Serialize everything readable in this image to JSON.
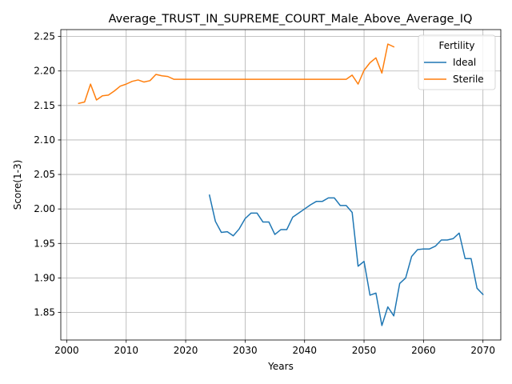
{
  "chart_data": {
    "type": "line",
    "title": "Average_TRUST_IN_SUPREME_COURT_Male_Above_Average_IQ",
    "xlabel": "Years",
    "ylabel": "Score(1-3)",
    "xlim": [
      1999,
      2073
    ],
    "ylim": [
      1.81,
      2.26
    ],
    "xticks": [
      2000,
      2010,
      2020,
      2030,
      2040,
      2050,
      2060,
      2070
    ],
    "yticks": [
      1.85,
      1.9,
      1.95,
      2.0,
      2.05,
      2.1,
      2.15,
      2.2,
      2.25
    ],
    "ytick_labels": [
      "1.85",
      "1.90",
      "1.95",
      "2.00",
      "2.05",
      "2.10",
      "2.15",
      "2.20",
      "2.25"
    ],
    "grid": true,
    "legend": {
      "title": "Fertility",
      "position": "top-right"
    },
    "series": [
      {
        "name": "Ideal",
        "color": "#1f77b4",
        "x": [
          2024,
          2025,
          2026,
          2027,
          2028,
          2029,
          2030,
          2031,
          2032,
          2033,
          2034,
          2035,
          2036,
          2037,
          2038,
          2039,
          2040,
          2041,
          2042,
          2043,
          2044,
          2045,
          2046,
          2047,
          2048,
          2049,
          2050,
          2051,
          2052,
          2053,
          2054,
          2055,
          2056,
          2057,
          2058,
          2059,
          2060,
          2061,
          2062,
          2063,
          2064,
          2065,
          2066,
          2067,
          2068,
          2069,
          2070
        ],
        "values": [
          2.02,
          1.982,
          1.966,
          1.967,
          1.961,
          1.971,
          1.986,
          1.994,
          1.994,
          1.981,
          1.981,
          1.963,
          1.97,
          1.97,
          1.988,
          1.994,
          2.0,
          2.006,
          2.011,
          2.011,
          2.016,
          2.016,
          2.005,
          2.005,
          1.995,
          1.917,
          1.924,
          1.875,
          1.878,
          1.831,
          1.858,
          1.845,
          1.892,
          1.9,
          1.931,
          1.941,
          1.942,
          1.942,
          1.946,
          1.955,
          1.955,
          1.957,
          1.965,
          1.928,
          1.928,
          1.885,
          1.876
        ]
      },
      {
        "name": "Sterile",
        "color": "#ff7f0e",
        "x": [
          2002,
          2003,
          2004,
          2005,
          2006,
          2007,
          2008,
          2009,
          2010,
          2011,
          2012,
          2013,
          2014,
          2015,
          2016,
          2017,
          2018,
          2019,
          2020,
          2021,
          2022,
          2023,
          2024,
          2025,
          2026,
          2027,
          2028,
          2029,
          2030,
          2031,
          2032,
          2033,
          2034,
          2035,
          2036,
          2037,
          2038,
          2039,
          2040,
          2041,
          2042,
          2043,
          2044,
          2045,
          2046,
          2047,
          2048,
          2049,
          2050,
          2051,
          2052,
          2053,
          2054,
          2055
        ],
        "values": [
          2.153,
          2.155,
          2.181,
          2.158,
          2.164,
          2.165,
          2.171,
          2.178,
          2.181,
          2.185,
          2.187,
          2.184,
          2.186,
          2.195,
          2.193,
          2.192,
          2.188,
          2.188,
          2.188,
          2.188,
          2.188,
          2.188,
          2.188,
          2.188,
          2.188,
          2.188,
          2.188,
          2.188,
          2.188,
          2.188,
          2.188,
          2.188,
          2.188,
          2.188,
          2.188,
          2.188,
          2.188,
          2.188,
          2.188,
          2.188,
          2.188,
          2.188,
          2.188,
          2.188,
          2.188,
          2.188,
          2.194,
          2.181,
          2.201,
          2.212,
          2.219,
          2.197,
          2.239,
          2.235
        ]
      }
    ]
  }
}
